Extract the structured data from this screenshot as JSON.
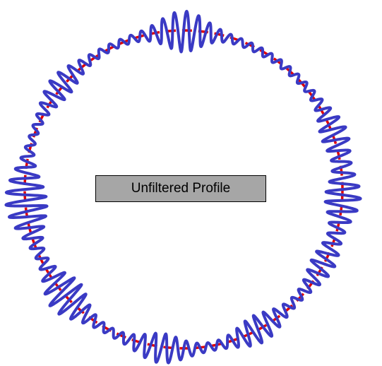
{
  "label": "Unfiltered Profile",
  "colors": {
    "reference_circle": "#e00000",
    "profile": "#3a3ac4",
    "label_background": "#a6a6a6",
    "label_border": "#000000"
  },
  "profile": {
    "noise_cycles": 90,
    "lobes": [
      {
        "angle_deg": 90,
        "amplitude": 24
      },
      {
        "angle_deg": 20,
        "amplitude": 14
      },
      {
        "angle_deg": -3,
        "amplitude": 20
      },
      {
        "angle_deg": -28,
        "amplitude": 12
      },
      {
        "angle_deg": -62,
        "amplitude": 15
      },
      {
        "angle_deg": -98,
        "amplitude": 16
      },
      {
        "angle_deg": -138,
        "amplitude": 22
      },
      {
        "angle_deg": -170,
        "amplitude": 15
      },
      {
        "angle_deg": 180,
        "amplitude": 16
      },
      {
        "angle_deg": 140,
        "amplitude": 12
      }
    ],
    "base_amplitude": 5
  }
}
